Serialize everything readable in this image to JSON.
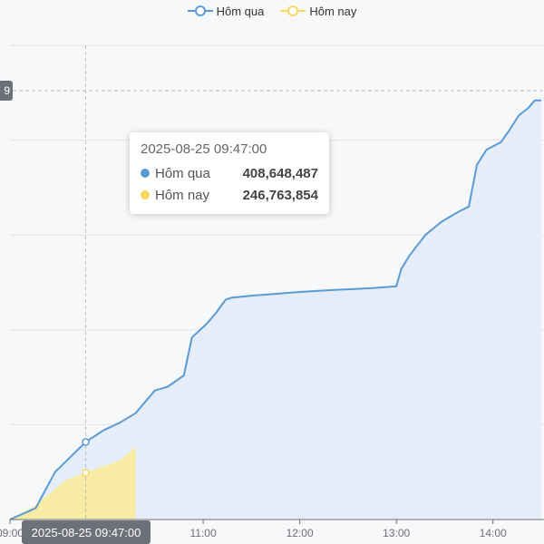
{
  "legend": {
    "yesterday_label": "Hôm qua",
    "today_label": "Hôm nay"
  },
  "tooltip": {
    "title": "2025-08-25 09:47:00",
    "rows": [
      {
        "name": "Hôm qua",
        "value": "408,648,487",
        "color": "#5b9bd5"
      },
      {
        "name": "Hôm nay",
        "value": "246,763,854",
        "color": "#fad860"
      }
    ]
  },
  "axis_pointer": {
    "x_label": "2025-08-25 09:47:00",
    "y_label": "9"
  },
  "chart_data": {
    "type": "area",
    "x_tick_labels": [
      "09:00",
      "11:00",
      "12:00",
      "13:00",
      "14:00"
    ],
    "x_ticks_minutes": [
      0,
      120,
      180,
      240,
      300
    ],
    "x_range_minutes": [
      0,
      330
    ],
    "ylim": [
      0,
      2500000000
    ],
    "y_gridlines": [
      0,
      500000000,
      1000000000,
      1500000000,
      2000000000,
      2500000000
    ],
    "series": [
      {
        "name": "Hôm qua",
        "color": "#5b9bd5",
        "area_color": "#e4edf8",
        "points": [
          [
            0,
            0
          ],
          [
            16,
            60000000
          ],
          [
            28,
            250000000
          ],
          [
            40,
            350000000
          ],
          [
            47,
            408648487
          ],
          [
            58,
            470000000
          ],
          [
            68,
            510000000
          ],
          [
            78,
            560000000
          ],
          [
            90,
            680000000
          ],
          [
            98,
            700000000
          ],
          [
            108,
            760000000
          ],
          [
            113,
            960000000
          ],
          [
            122,
            1030000000
          ],
          [
            128,
            1090000000
          ],
          [
            134,
            1160000000
          ],
          [
            138,
            1170000000
          ],
          [
            150,
            1180000000
          ],
          [
            165,
            1190000000
          ],
          [
            180,
            1200000000
          ],
          [
            200,
            1210000000
          ],
          [
            225,
            1220000000
          ],
          [
            240,
            1230000000
          ],
          [
            243,
            1320000000
          ],
          [
            248,
            1390000000
          ],
          [
            258,
            1500000000
          ],
          [
            268,
            1570000000
          ],
          [
            278,
            1620000000
          ],
          [
            285,
            1650000000
          ],
          [
            290,
            1870000000
          ],
          [
            296,
            1950000000
          ],
          [
            305,
            1990000000
          ],
          [
            310,
            2050000000
          ],
          [
            316,
            2130000000
          ],
          [
            322,
            2170000000
          ],
          [
            326,
            2210000000
          ],
          [
            330,
            2210000000
          ]
        ]
      },
      {
        "name": "Hôm nay",
        "color": "#fad860",
        "area_color": "#f8eca4",
        "points": [
          [
            0,
            0
          ],
          [
            15,
            70000000
          ],
          [
            25,
            140000000
          ],
          [
            35,
            210000000
          ],
          [
            47,
            246763854
          ],
          [
            58,
            280000000
          ],
          [
            68,
            310000000
          ],
          [
            75,
            360000000
          ],
          [
            78,
            385000000
          ]
        ]
      }
    ]
  }
}
